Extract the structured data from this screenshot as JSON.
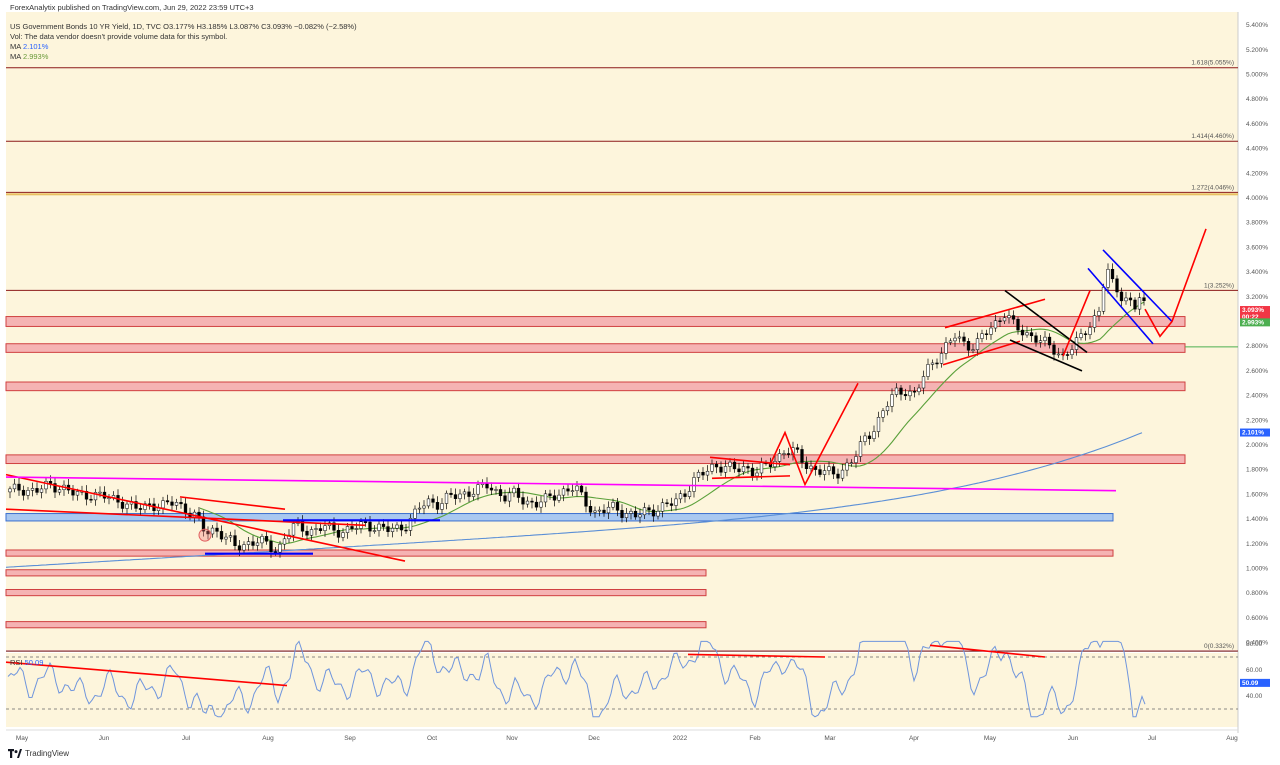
{
  "header": {
    "published": "ForexAnalytix published on TradingView.com, Jun 29, 2022 23:59 UTC+3",
    "symbol_line": "US Government Bonds 10 YR Yield, 1D, TVC  O3.177%  H3.185%  L3.087%  C3.093%  −0.082% (−2.58%)",
    "vol_line": "Vol: The data vendor doesn't provide volume data for this symbol.",
    "ma1_label": "MA",
    "ma1_value": "2.101%",
    "ma2_label": "MA",
    "ma2_value": "2.993%"
  },
  "rsi": {
    "label": "RSI",
    "value": "50.09",
    "ticks": [
      "80.00",
      "60.00",
      "40.00"
    ]
  },
  "footer": {
    "brand": "TradingView"
  },
  "colors": {
    "background": "#fdf5dc",
    "up": "#ffffff",
    "down": "#000000",
    "fib_line": "#8b1a1a",
    "zone_red": "#f5b3b3",
    "zone_red_border": "#d04040",
    "zone_blue": "#a9c8f0",
    "zone_blue_border": "#3a6fd0",
    "ma_slow": "#5b8fd6",
    "ma_fast": "#5aa03a",
    "trend_red": "#ff0000",
    "trend_blue": "#0000ff",
    "trend_black": "#000000",
    "trend_magenta": "#ff00ff",
    "rsi_line": "#6f95dd"
  },
  "chart_data": {
    "type": "candlestick",
    "instrument": "US Government Bonds 10 YR Yield",
    "interval": "1D",
    "ohlc_last": {
      "open": 3.177,
      "high": 3.185,
      "low": 3.087,
      "close": 3.093,
      "change": -0.082,
      "change_pct": -2.58
    },
    "ylim": [
      0.3,
      5.5
    ],
    "y_ticks": [
      "5.400%",
      "5.200%",
      "5.000%",
      "4.800%",
      "4.600%",
      "4.400%",
      "4.200%",
      "4.000%",
      "3.800%",
      "3.600%",
      "3.400%",
      "3.200%",
      "3.000%",
      "2.800%",
      "2.600%",
      "2.400%",
      "2.200%",
      "2.000%",
      "1.800%",
      "1.600%",
      "1.400%",
      "1.200%",
      "1.000%",
      "0.800%",
      "0.600%",
      "0.400%"
    ],
    "x_ticks": [
      "May",
      "Jun",
      "Jul",
      "Aug",
      "Sep",
      "Oct",
      "Nov",
      "Dec",
      "2022",
      "Feb",
      "Mar",
      "Apr",
      "May",
      "Jun",
      "Jul",
      "Aug"
    ],
    "fib_levels": [
      {
        "label": "1.618(5.055%)",
        "value": 5.055
      },
      {
        "label": "1.414(4.460%)",
        "value": 4.46
      },
      {
        "label": "1.272(4.046%)",
        "value": 4.046
      },
      {
        "label": "1(3.252%)",
        "value": 3.252
      },
      {
        "label": "0(0.332%)",
        "value": 0.332
      }
    ],
    "price_badges": [
      {
        "label": "3.093%",
        "sub": "00:22",
        "value": 3.093,
        "color": "#f23645"
      },
      {
        "label": "2.993%",
        "value": 2.993,
        "color": "#4caf50"
      },
      {
        "label": "2.101%",
        "value": 2.101,
        "color": "#2962ff"
      }
    ],
    "series": [
      {
        "name": "MA 2.101%",
        "last": 2.101
      },
      {
        "name": "MA 2.993%",
        "last": 2.993
      }
    ],
    "rsi_last": 50.09
  }
}
